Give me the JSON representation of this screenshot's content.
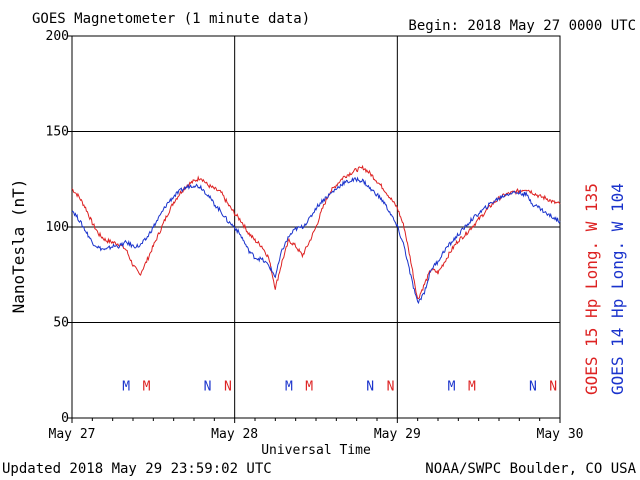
{
  "header": {
    "title": "GOES Magnetometer (1 minute data)",
    "begin": "Begin:  2018 May 27 0000 UTC"
  },
  "footer": {
    "updated": "Updated 2018 May 29 23:59:02 UTC",
    "credit": "NOAA/SWPC Boulder, CO USA"
  },
  "colors": {
    "goes15": "#dd2222",
    "goes14": "#1a33cc"
  },
  "chart_data": {
    "type": "line",
    "title": "GOES Magnetometer (1 minute data)",
    "xlabel": "Universal Time",
    "ylabel": "NanoTesla (nT)",
    "ylim": [
      0,
      200
    ],
    "xlim": [
      0,
      72
    ],
    "yticks": [
      "0",
      "50",
      "100",
      "150",
      "200"
    ],
    "xticks": [
      {
        "x": 0,
        "label": "May 27"
      },
      {
        "x": 24,
        "label": "May 28"
      },
      {
        "x": 48,
        "label": "May 29"
      },
      {
        "x": 72,
        "label": "May 30"
      }
    ],
    "grid": true,
    "series": [
      {
        "name": "GOES 15 Hp  Long. W 135",
        "color": "#dd2222",
        "points": [
          [
            0,
            120
          ],
          [
            1,
            116
          ],
          [
            2,
            110
          ],
          [
            3,
            102
          ],
          [
            4,
            96
          ],
          [
            5,
            93
          ],
          [
            6,
            92
          ],
          [
            7,
            91
          ],
          [
            8,
            88
          ],
          [
            9,
            80
          ],
          [
            10,
            75
          ],
          [
            11,
            82
          ],
          [
            12,
            90
          ],
          [
            13,
            98
          ],
          [
            14,
            106
          ],
          [
            15,
            113
          ],
          [
            16,
            118
          ],
          [
            17,
            122
          ],
          [
            18,
            124
          ],
          [
            19,
            126
          ],
          [
            20,
            122
          ],
          [
            21,
            120
          ],
          [
            22,
            118
          ],
          [
            23,
            112
          ],
          [
            24,
            107
          ],
          [
            25,
            103
          ],
          [
            26,
            97
          ],
          [
            27,
            93
          ],
          [
            28,
            90
          ],
          [
            29,
            84
          ],
          [
            30,
            68
          ],
          [
            31,
            82
          ],
          [
            32,
            93
          ],
          [
            33,
            90
          ],
          [
            34,
            85
          ],
          [
            35,
            92
          ],
          [
            36,
            100
          ],
          [
            37,
            110
          ],
          [
            38,
            118
          ],
          [
            39,
            122
          ],
          [
            40,
            126
          ],
          [
            41,
            128
          ],
          [
            42,
            130
          ],
          [
            43,
            131
          ],
          [
            44,
            128
          ],
          [
            45,
            124
          ],
          [
            46,
            120
          ],
          [
            47,
            115
          ],
          [
            48,
            110
          ],
          [
            49,
            100
          ],
          [
            50,
            82
          ],
          [
            51,
            62
          ],
          [
            52,
            70
          ],
          [
            53,
            78
          ],
          [
            54,
            76
          ],
          [
            55,
            82
          ],
          [
            56,
            88
          ],
          [
            57,
            93
          ],
          [
            58,
            96
          ],
          [
            59,
            100
          ],
          [
            60,
            104
          ],
          [
            61,
            108
          ],
          [
            62,
            112
          ],
          [
            63,
            115
          ],
          [
            64,
            117
          ],
          [
            65,
            118
          ],
          [
            66,
            119
          ],
          [
            67,
            120
          ],
          [
            68,
            118
          ],
          [
            69,
            116
          ],
          [
            70,
            115
          ],
          [
            71,
            113
          ],
          [
            72,
            112
          ]
        ]
      },
      {
        "name": "GOES 14 Hp  Long. W 104",
        "color": "#1a33cc",
        "points": [
          [
            0,
            109
          ],
          [
            1,
            104
          ],
          [
            2,
            98
          ],
          [
            3,
            92
          ],
          [
            4,
            89
          ],
          [
            5,
            88
          ],
          [
            6,
            90
          ],
          [
            7,
            90
          ],
          [
            8,
            92
          ],
          [
            9,
            90
          ],
          [
            10,
            90
          ],
          [
            11,
            94
          ],
          [
            12,
            100
          ],
          [
            13,
            106
          ],
          [
            14,
            112
          ],
          [
            15,
            116
          ],
          [
            16,
            119
          ],
          [
            17,
            121
          ],
          [
            18,
            122
          ],
          [
            19,
            121
          ],
          [
            20,
            117
          ],
          [
            21,
            112
          ],
          [
            22,
            108
          ],
          [
            23,
            103
          ],
          [
            24,
            100
          ],
          [
            25,
            95
          ],
          [
            26,
            88
          ],
          [
            27,
            84
          ],
          [
            28,
            83
          ],
          [
            29,
            80
          ],
          [
            30,
            74
          ],
          [
            31,
            88
          ],
          [
            32,
            95
          ],
          [
            33,
            99
          ],
          [
            34,
            100
          ],
          [
            35,
            104
          ],
          [
            36,
            110
          ],
          [
            37,
            114
          ],
          [
            38,
            117
          ],
          [
            39,
            120
          ],
          [
            40,
            123
          ],
          [
            41,
            124
          ],
          [
            42,
            125
          ],
          [
            43,
            124
          ],
          [
            44,
            120
          ],
          [
            45,
            117
          ],
          [
            46,
            113
          ],
          [
            47,
            107
          ],
          [
            48,
            100
          ],
          [
            49,
            90
          ],
          [
            50,
            74
          ],
          [
            51,
            60
          ],
          [
            52,
            66
          ],
          [
            53,
            78
          ],
          [
            54,
            82
          ],
          [
            55,
            88
          ],
          [
            56,
            92
          ],
          [
            57,
            96
          ],
          [
            58,
            100
          ],
          [
            59,
            104
          ],
          [
            60,
            107
          ],
          [
            61,
            110
          ],
          [
            62,
            113
          ],
          [
            63,
            115
          ],
          [
            64,
            117
          ],
          [
            65,
            118
          ],
          [
            66,
            118
          ],
          [
            67,
            117
          ],
          [
            68,
            112
          ],
          [
            69,
            110
          ],
          [
            70,
            107
          ],
          [
            71,
            105
          ],
          [
            72,
            103
          ]
        ]
      }
    ],
    "markers": [
      {
        "x": 8,
        "label": "M",
        "color": "#1a33cc"
      },
      {
        "x": 11,
        "label": "M",
        "color": "#dd2222"
      },
      {
        "x": 20,
        "label": "N",
        "color": "#1a33cc"
      },
      {
        "x": 23,
        "label": "N",
        "color": "#dd2222"
      },
      {
        "x": 32,
        "label": "M",
        "color": "#1a33cc"
      },
      {
        "x": 35,
        "label": "M",
        "color": "#dd2222"
      },
      {
        "x": 44,
        "label": "N",
        "color": "#1a33cc"
      },
      {
        "x": 47,
        "label": "N",
        "color": "#dd2222"
      },
      {
        "x": 56,
        "label": "M",
        "color": "#1a33cc"
      },
      {
        "x": 59,
        "label": "M",
        "color": "#dd2222"
      },
      {
        "x": 68,
        "label": "N",
        "color": "#1a33cc"
      },
      {
        "x": 71,
        "label": "N",
        "color": "#dd2222"
      }
    ],
    "marker_level": 17
  }
}
